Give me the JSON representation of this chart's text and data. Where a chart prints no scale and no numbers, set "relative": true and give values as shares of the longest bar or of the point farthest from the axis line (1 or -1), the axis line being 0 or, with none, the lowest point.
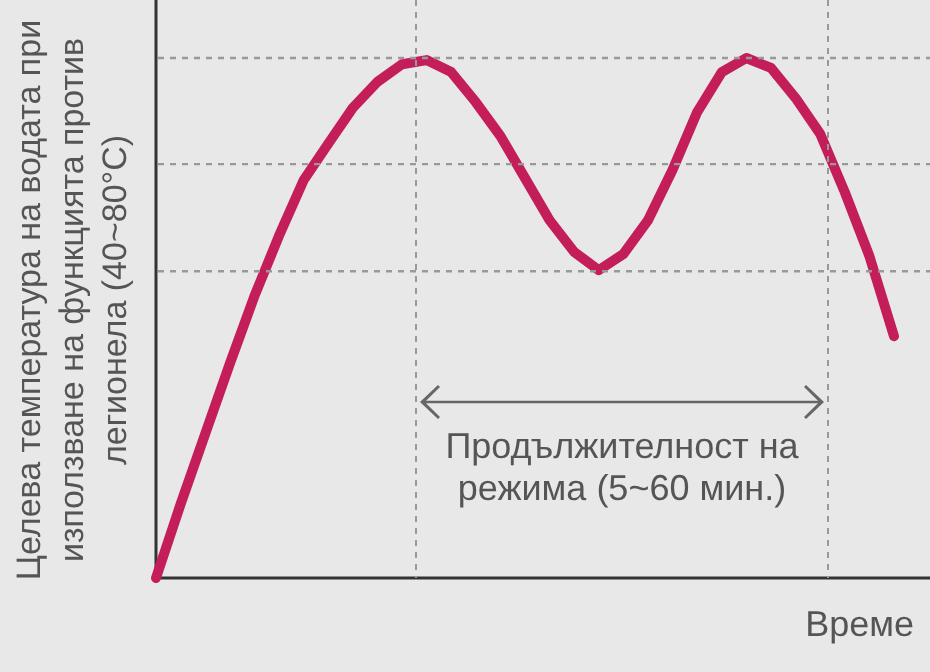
{
  "chart_data": {
    "type": "line",
    "relative": true,
    "marker": "none",
    "line_style": "solid",
    "ylabel": "Целева температура на водата при използване на функцията против легионела (40~80°C)",
    "xlabel": "Време",
    "categories": [
      null,
      null,
      null,
      null,
      null,
      null,
      null,
      null,
      null,
      null,
      null,
      null,
      null,
      null,
      null,
      null,
      null,
      null,
      null,
      null,
      null,
      null,
      null,
      null,
      null,
      null,
      null,
      null,
      null,
      null,
      null
    ],
    "series": [
      {
        "color": "#c41e5a",
        "values": [
          0,
          0.142,
          0.277,
          0.412,
          0.542,
          0.658,
          0.765,
          0.835,
          0.904,
          0.954,
          0.988,
          0.996,
          0.973,
          0.915,
          0.85,
          0.769,
          0.688,
          0.627,
          0.592,
          0.623,
          0.688,
          0.785,
          0.896,
          0.973,
          1,
          0.981,
          0.923,
          0.854,
          0.742,
          0.619,
          0.465
        ]
      }
    ],
    "ref_lines": [
      {
        "axis": "y",
        "value": 1,
        "color": "#999999",
        "line_style": "dashed"
      },
      {
        "axis": "y",
        "value": 0.796,
        "color": "#999999",
        "line_style": "dashed"
      },
      {
        "axis": "y",
        "value": 0.59,
        "color": "#999999",
        "line_style": "dashed"
      }
    ],
    "annotations": [
      "Продължителност на режима (5~60 мин.)"
    ]
  }
}
